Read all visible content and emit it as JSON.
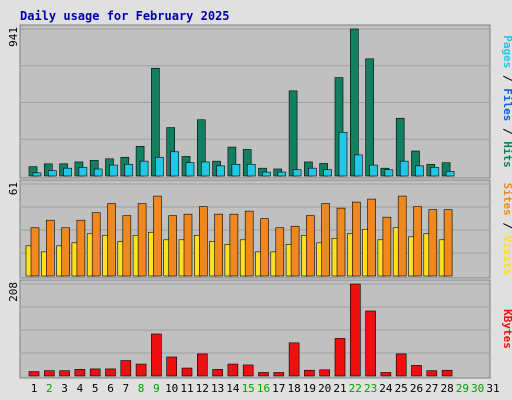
{
  "chart_data": {
    "type": "bar",
    "title": "Daily usage for February 2025",
    "x": [
      "1",
      "2",
      "3",
      "4",
      "5",
      "6",
      "7",
      "8",
      "9",
      "10",
      "11",
      "12",
      "13",
      "14",
      "15",
      "16",
      "17",
      "18",
      "19",
      "20",
      "21",
      "22",
      "23",
      "24",
      "25",
      "26",
      "27",
      "28",
      "29",
      "30",
      "31"
    ],
    "x_weekend": [
      false,
      true,
      false,
      false,
      false,
      false,
      false,
      true,
      true,
      false,
      false,
      false,
      false,
      false,
      true,
      true,
      false,
      false,
      false,
      false,
      false,
      true,
      true,
      false,
      false,
      false,
      false,
      false,
      true,
      true,
      false
    ],
    "panels": [
      {
        "name": "traffic",
        "ymax_label": "941",
        "ylim": [
          0,
          941
        ],
        "series": [
          {
            "name": "Hits",
            "color": "#128060",
            "values": [
              60,
              78,
              78,
              90,
              100,
              110,
              120,
              190,
              690,
              310,
              125,
              360,
              95,
              185,
              170,
              50,
              45,
              545,
              90,
              80,
              630,
              941,
              750,
              50,
              370,
              160,
              75,
              85,
              0,
              0,
              0
            ]
          },
          {
            "name": "Files",
            "color": "#20c8e8",
            "values": [
              0,
              0,
              0,
              0,
              0,
              0,
              0,
              0,
              0,
              0,
              0,
              0,
              0,
              0,
              0,
              0,
              0,
              0,
              0,
              0,
              0,
              0,
              0,
              0,
              0,
              0,
              0,
              0,
              0,
              0,
              0
            ]
          },
          {
            "name": "Pages",
            "color": "#20c8e8",
            "values": [
              20,
              35,
              50,
              55,
              45,
              70,
              75,
              95,
              120,
              155,
              85,
              90,
              65,
              75,
              75,
              25,
              25,
              40,
              50,
              40,
              280,
              135,
              70,
              40,
              95,
              65,
              55,
              30,
              0,
              0,
              0
            ]
          }
        ],
        "side_labels": [
          {
            "text": "Pages",
            "color": "#20c8e8"
          },
          {
            "text": " / ",
            "color": "#000000"
          },
          {
            "text": "Files",
            "color": "#1060e0"
          },
          {
            "text": " / ",
            "color": "#000000"
          },
          {
            "text": "Hits",
            "color": "#128060"
          }
        ]
      },
      {
        "name": "visits",
        "ymax_label": "61",
        "ylim": [
          0,
          61
        ],
        "series": [
          {
            "name": "Visits",
            "color": "#f08820",
            "values": [
              32,
              37,
              32,
              37,
              42,
              48,
              40,
              48,
              53,
              40,
              41,
              46,
              41,
              41,
              43,
              38,
              32,
              33,
              40,
              48,
              45,
              49,
              51,
              39,
              53,
              46,
              44,
              44,
              0,
              0,
              0
            ]
          },
          {
            "name": "Sites",
            "color": "#ffe020",
            "values": [
              20,
              16,
              20,
              22,
              28,
              27,
              23,
              27,
              29,
              24,
              24,
              27,
              23,
              21,
              24,
              16,
              16,
              21,
              27,
              22,
              25,
              28,
              31,
              24,
              32,
              26,
              28,
              24,
              0,
              0,
              0
            ]
          }
        ],
        "side_labels": [
          {
            "text": "Sites",
            "color": "#f08820"
          },
          {
            "text": " / ",
            "color": "#000000"
          },
          {
            "text": "Visits",
            "color": "#ffe020"
          }
        ]
      },
      {
        "name": "kbytes",
        "ymax_label": "208",
        "ylim": [
          0,
          208
        ],
        "series": [
          {
            "name": "KBytes",
            "color": "#ee1010",
            "values": [
              10,
              12,
              12,
              15,
              16,
              16,
              35,
              27,
              95,
              43,
              18,
              50,
              15,
              27,
              25,
              8,
              8,
              75,
              13,
              14,
              85,
              208,
              147,
              8,
              50,
              24,
              12,
              13,
              0,
              0,
              0
            ]
          }
        ],
        "side_labels": [
          {
            "text": "KBytes",
            "color": "#ee1010"
          }
        ]
      }
    ],
    "colors": {
      "background": "#e0e0e0",
      "plot": "#c0c0c0",
      "grid": "#a0a0a0",
      "weekday_tick": "#000000",
      "weekend_tick": "#00a000"
    }
  }
}
